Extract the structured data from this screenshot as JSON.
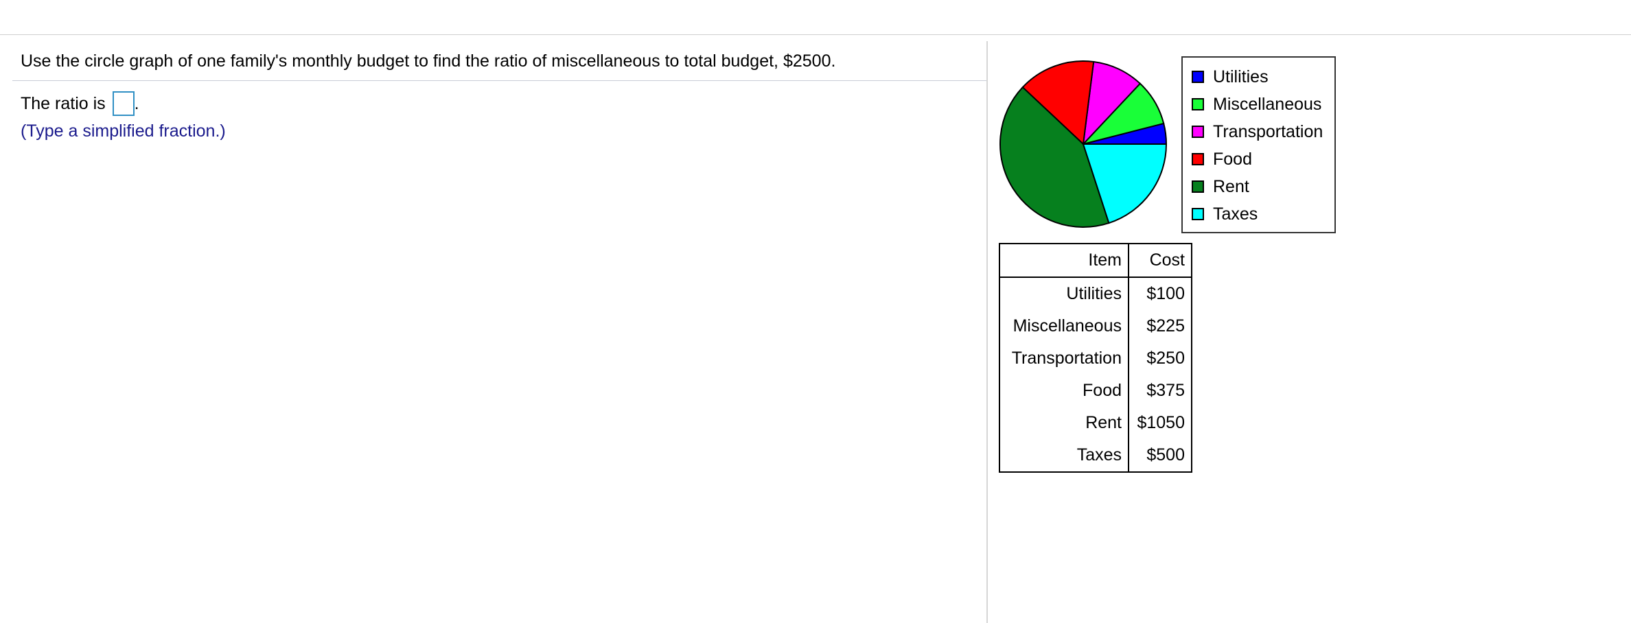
{
  "question": {
    "text": "Use the circle graph of one family's monthly budget to find the ratio of miscellaneous to total budget, $2500.",
    "answer_prefix": "The ratio is",
    "answer_suffix": ".",
    "hint": "(Type a simplified fraction.)"
  },
  "chart_data": {
    "type": "pie",
    "title": "",
    "slices": [
      {
        "label": "Utilities",
        "value": 100,
        "color": "#0000ff"
      },
      {
        "label": "Miscellaneous",
        "value": 225,
        "color": "#19ff38"
      },
      {
        "label": "Transportation",
        "value": 250,
        "color": "#ff00ff"
      },
      {
        "label": "Food",
        "value": 375,
        "color": "#ff0000"
      },
      {
        "label": "Rent",
        "value": 1050,
        "color": "#06801e"
      },
      {
        "label": "Taxes",
        "value": 500,
        "color": "#00ffff"
      }
    ],
    "start_direction": "east",
    "direction": "counterclockwise",
    "legend_position": "right"
  },
  "table": {
    "headers": [
      "Item",
      "Cost"
    ],
    "rows": [
      [
        "Utilities",
        "$100"
      ],
      [
        "Miscellaneous",
        "$225"
      ],
      [
        "Transportation",
        "$250"
      ],
      [
        "Food",
        "$375"
      ],
      [
        "Rent",
        "$1050"
      ],
      [
        "Taxes",
        "$500"
      ]
    ]
  }
}
